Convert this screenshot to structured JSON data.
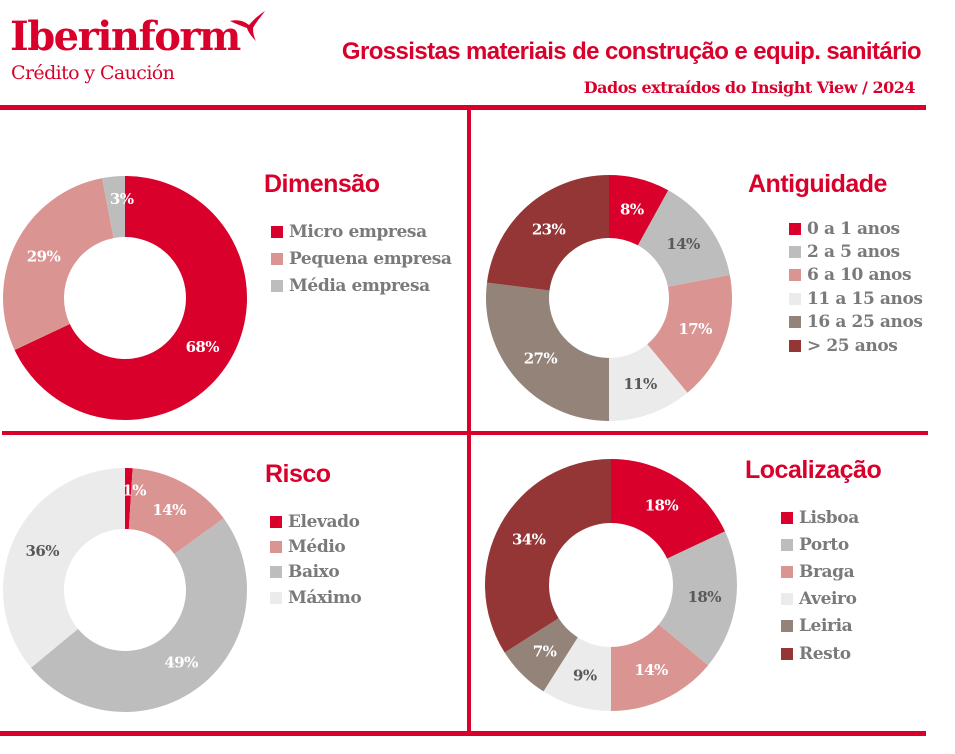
{
  "header": {
    "logo_name": "Iberinform",
    "logo_sub": "Crédito y Caución",
    "title": "Grossistas materiais de construção e equip. sanitário",
    "subtitle": "Dados extraídos do Insight View / 2024"
  },
  "colors": {
    "brand": "#d9002b",
    "legend_text": "#7a7a7a",
    "red": "#d9002b",
    "pink": "#da9593",
    "gray": "#bdbdbd",
    "light_gray": "#ebebeb",
    "taupe": "#938379",
    "dark_red": "#943636"
  },
  "chart_data": [
    {
      "type": "pie",
      "title": "Dimensão",
      "categories": [
        "Micro empresa",
        "Pequena empresa",
        "Média empresa"
      ],
      "values": [
        68,
        29,
        3
      ],
      "labels": [
        "68%",
        "29%",
        "3%"
      ],
      "colors": [
        "#d9002b",
        "#da9593",
        "#bdbdbd"
      ],
      "label_colors": [
        "#ffffff",
        "#ffffff",
        "#ffffff"
      ],
      "donut": true,
      "start": "top",
      "direction": "clockwise",
      "legend": "right"
    },
    {
      "type": "pie",
      "title": "Antiguidade",
      "categories": [
        "0 a 1 anos",
        "2 a 5 anos",
        "6 a 10 anos",
        "11 a 15 anos",
        "16 a 25 anos",
        "> 25 anos"
      ],
      "values": [
        8,
        14,
        17,
        11,
        27,
        23
      ],
      "labels": [
        "8%",
        "14%",
        "17%",
        "11%",
        "27%",
        "23%"
      ],
      "colors": [
        "#d9002b",
        "#bdbdbd",
        "#da9593",
        "#ebebeb",
        "#938379",
        "#943636"
      ],
      "label_colors": [
        "#ffffff",
        "#595959",
        "#ffffff",
        "#595959",
        "#ffffff",
        "#ffffff"
      ],
      "donut": true,
      "start": "top",
      "direction": "clockwise",
      "legend": "right"
    },
    {
      "type": "pie",
      "title": "Risco",
      "categories": [
        "Elevado",
        "Médio",
        "Baixo",
        "Máximo"
      ],
      "values": [
        1,
        14,
        49,
        36
      ],
      "labels": [
        "1%",
        "14%",
        "49%",
        "36%"
      ],
      "colors": [
        "#d9002b",
        "#da9593",
        "#bdbdbd",
        "#ebebeb"
      ],
      "label_colors": [
        "#ffffff",
        "#ffffff",
        "#ffffff",
        "#595959"
      ],
      "donut": true,
      "start": "top",
      "direction": "clockwise",
      "legend": "right"
    },
    {
      "type": "pie",
      "title": "Localização",
      "categories": [
        "Lisboa",
        "Porto",
        "Braga",
        "Aveiro",
        "Leiria",
        "Resto"
      ],
      "values": [
        18,
        18,
        14,
        9,
        7,
        34
      ],
      "labels": [
        "18%",
        "18%",
        "14%",
        "9%",
        "7%",
        "34%"
      ],
      "colors": [
        "#d9002b",
        "#bdbdbd",
        "#da9593",
        "#ebebeb",
        "#938379",
        "#943636"
      ],
      "label_colors": [
        "#ffffff",
        "#595959",
        "#ffffff",
        "#595959",
        "#ffffff",
        "#ffffff"
      ],
      "donut": true,
      "start": "top",
      "direction": "clockwise",
      "legend": "right"
    }
  ]
}
